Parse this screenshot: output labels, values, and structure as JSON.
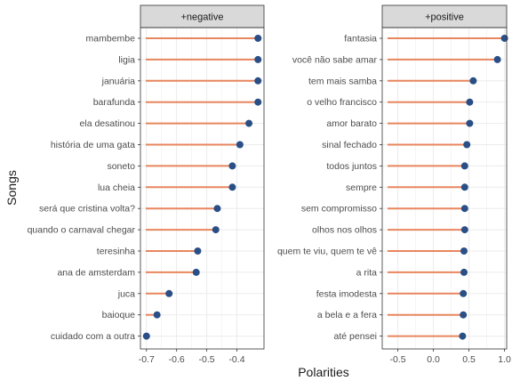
{
  "chart_data": {
    "type": "lollipop",
    "ylabel": "Songs",
    "xlabel": "Polarities",
    "colors": {
      "segment": "#E8865E",
      "point": "#2A4F86",
      "strip": "#D9D9D9",
      "grid": "#EBEBEB"
    },
    "panels": [
      {
        "strip": "+negative",
        "xlim": [
          -0.72,
          -0.31
        ],
        "ticks": [
          -0.7,
          -0.6,
          -0.5,
          -0.4
        ],
        "tick_labels": [
          "-0.7",
          "-0.6",
          "-0.5",
          "-0.4"
        ],
        "categories": [
          "mambembe",
          "ligia",
          "januária",
          "barafunda",
          "ela desatinou",
          "história de uma gata",
          "soneto",
          "lua cheia",
          "será que cristina volta?",
          "quando o carnaval chegar",
          "teresinha",
          "ana de amsterdam",
          "juca",
          "baioque",
          "cuidado com a outra"
        ],
        "values": [
          -0.33,
          -0.33,
          -0.33,
          -0.33,
          -0.36,
          -0.39,
          -0.415,
          -0.415,
          -0.465,
          -0.47,
          -0.53,
          -0.535,
          -0.625,
          -0.665,
          -0.7
        ]
      },
      {
        "strip": "+positive",
        "xlim": [
          -0.72,
          1.03
        ],
        "ticks": [
          -0.5,
          0.0,
          0.5,
          1.0
        ],
        "tick_labels": [
          "-0.5",
          "0.0",
          "0.5",
          "1.0"
        ],
        "categories": [
          "fantasia",
          "você não sabe amar",
          "tem mais samba",
          "o velho francisco",
          "amor barato",
          "sinal fechado",
          "todos juntos",
          "sempre",
          "sem compromisso",
          "olhos nos olhos",
          "quem te viu, quem te vê",
          "a rita",
          "festa imodesta",
          "a bela e a fera",
          "até pensei"
        ],
        "values": [
          1.0,
          0.9,
          0.56,
          0.51,
          0.51,
          0.47,
          0.44,
          0.44,
          0.44,
          0.44,
          0.43,
          0.43,
          0.42,
          0.42,
          0.41
        ]
      }
    ]
  }
}
